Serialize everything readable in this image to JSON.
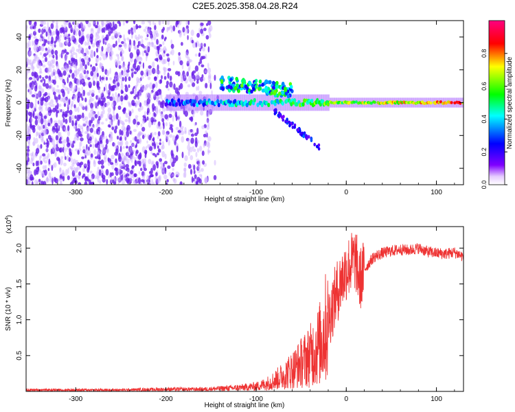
{
  "figure_title": "C2E5.2025.358.04.28.R24",
  "colors": {
    "snr_line": "#ee3333",
    "spectrogram_noise": "#6a1fe8",
    "spectrogram_noise_light": "#c9a8ff",
    "axis": "#000000"
  },
  "chart_data": [
    {
      "type": "heatmap",
      "name": "spectrogram",
      "xlabel": "Height of straight line (km)",
      "ylabel": "Frequency (Hz)",
      "xlim": [
        -355,
        130
      ],
      "ylim": [
        -50,
        50
      ],
      "xticks": [
        -300,
        -200,
        -100,
        0,
        100
      ],
      "yticks": [
        -40,
        -20,
        0,
        20,
        40
      ],
      "xtick_labels": [
        "-300",
        "-200",
        "-100",
        "0",
        "100"
      ],
      "ytick_labels": [
        "-40",
        "-20",
        "0",
        "20",
        "40"
      ],
      "colorbar": {
        "label": "Normalized spectral amplitude",
        "range": [
          0,
          1
        ],
        "ticks": [
          0.0,
          0.2,
          0.4,
          0.6,
          0.8
        ],
        "tick_labels": [
          "0.0",
          "0.2",
          "0.4",
          "0.6",
          "0.8"
        ],
        "colormap": [
          "#ffffff",
          "#8000ff",
          "#0000ff",
          "#00ffff",
          "#00ff00",
          "#ffff00",
          "#ff0000",
          "#ff0080"
        ]
      },
      "regions": [
        {
          "name": "broadband noise",
          "x_range": [
            -355,
            -150
          ],
          "f_range": [
            -50,
            50
          ],
          "amplitude": 0.15
        },
        {
          "name": "main carrier",
          "x_range": [
            -200,
            130
          ],
          "f_center": 0,
          "amplitude_start": 0.3,
          "amplitude_end": 0.8
        },
        {
          "name": "upper branch",
          "x_range": [
            -140,
            -60
          ],
          "f_center": 12,
          "amplitude": 0.45
        },
        {
          "name": "lower branch",
          "x_range": [
            -80,
            -30
          ],
          "f_start": -5,
          "f_end": -27,
          "amplitude": 0.25
        }
      ]
    },
    {
      "type": "line",
      "name": "snr",
      "xlabel": "Height of straight line (km)",
      "ylabel": "SNR (10 * v/v)",
      "y_multiplier": "(x10^4)",
      "y_multiplier_base": "(x10",
      "y_multiplier_exp": "4",
      "y_multiplier_close": ")",
      "xlim": [
        -355,
        130
      ],
      "ylim": [
        0,
        2.3
      ],
      "xticks": [
        -300,
        -200,
        -100,
        0,
        100
      ],
      "yticks": [
        0.5,
        1.0,
        1.5,
        2.0
      ],
      "xtick_labels": [
        "-300",
        "-200",
        "-100",
        "0",
        "100"
      ],
      "ytick_labels": [
        "0.5",
        "1.0",
        "1.5",
        "2.0"
      ],
      "series": [
        {
          "name": "SNR",
          "x": [
            -355,
            -300,
            -250,
            -200,
            -180,
            -160,
            -140,
            -120,
            -100,
            -90,
            -80,
            -70,
            -60,
            -50,
            -40,
            -30,
            -25,
            -20,
            -15,
            -10,
            -5,
            0,
            5,
            10,
            15,
            20,
            30,
            40,
            50,
            60,
            70,
            80,
            90,
            100,
            110,
            120,
            130
          ],
          "y": [
            0.02,
            0.02,
            0.02,
            0.03,
            0.03,
            0.03,
            0.04,
            0.05,
            0.07,
            0.1,
            0.15,
            0.22,
            0.3,
            0.4,
            0.5,
            0.65,
            0.8,
            1.0,
            1.2,
            1.4,
            1.55,
            1.7,
            1.78,
            1.85,
            1.55,
            1.7,
            1.87,
            1.93,
            1.96,
            1.98,
            1.97,
            2.0,
            1.95,
            1.93,
            1.92,
            1.94,
            1.88
          ]
        }
      ]
    }
  ]
}
